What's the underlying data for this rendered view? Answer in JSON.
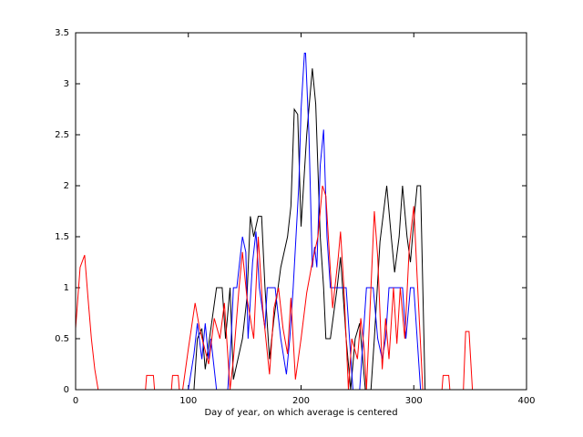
{
  "chart_data": {
    "type": "line",
    "xlabel": "Day of year, on which average is centered",
    "xlim": [
      0,
      400
    ],
    "xticks": [
      0,
      100,
      200,
      300,
      400
    ],
    "ylim": [
      0,
      3.5
    ],
    "yticks": [
      0,
      0.5,
      1,
      1.5,
      2,
      2.5,
      3,
      3.5
    ],
    "grid": false,
    "series": [
      {
        "color": "#000000",
        "x": [
          0,
          105,
          108,
          112,
          115,
          120,
          125,
          130,
          133,
          137,
          140,
          143,
          148,
          152,
          155,
          158,
          162,
          165,
          168,
          172,
          176,
          182,
          188,
          191,
          194,
          197,
          200,
          205,
          210,
          213,
          217,
          220,
          222,
          226,
          232,
          235,
          240,
          244,
          248,
          252,
          257,
          262,
          265,
          270,
          276,
          280,
          283,
          287,
          290,
          294,
          297,
          300,
          303,
          306,
          308,
          310,
          400
        ],
        "values": [
          0,
          0,
          0.5,
          0.6,
          0.2,
          0.6,
          1.0,
          1.0,
          0.5,
          1.0,
          0.1,
          0.25,
          0.5,
          0.9,
          1.7,
          1.5,
          1.7,
          1.7,
          1.0,
          0.3,
          0.7,
          1.2,
          1.5,
          1.8,
          2.75,
          2.7,
          1.6,
          2.5,
          3.15,
          2.8,
          1.5,
          1.0,
          0.5,
          0.5,
          1.0,
          1.3,
          0.5,
          0,
          0.5,
          0.65,
          0,
          0,
          0.5,
          1.45,
          2.0,
          1.5,
          1.15,
          1.5,
          2.0,
          1.5,
          1.25,
          1.65,
          2.0,
          2.0,
          1.0,
          0,
          0
        ]
      },
      {
        "color": "#0000ff",
        "x": [
          0,
          100,
          105,
          108,
          112,
          115,
          118,
          120,
          125,
          135,
          138,
          140,
          143,
          146,
          148,
          151,
          153,
          157,
          160,
          163,
          168,
          170,
          177,
          182,
          187,
          190,
          193,
          198,
          200,
          203,
          204,
          207,
          210,
          212,
          214,
          217,
          220,
          223,
          226,
          240,
          243,
          246,
          252,
          258,
          264,
          268,
          272,
          275,
          278,
          290,
          293,
          297,
          300,
          306,
          400
        ],
        "values": [
          0,
          0,
          0.35,
          0.65,
          0.3,
          0.65,
          0.3,
          0.5,
          0,
          0,
          0.5,
          1.0,
          1.0,
          1.3,
          1.5,
          1.35,
          0.5,
          1.25,
          1.55,
          1.0,
          0.6,
          1.0,
          1.0,
          0.5,
          0.15,
          0.5,
          1.0,
          2.0,
          2.75,
          3.3,
          3.3,
          2.5,
          1.2,
          1.4,
          1.2,
          2.2,
          2.55,
          1.5,
          1.0,
          1.0,
          0.5,
          0,
          0,
          1.0,
          1.0,
          0.5,
          0.3,
          0.5,
          1.0,
          1.0,
          0.5,
          1.0,
          1.0,
          0,
          0
        ]
      },
      {
        "color": "#ff0000",
        "x": [
          0,
          4,
          8,
          11,
          14,
          17,
          20,
          62,
          63,
          69,
          70,
          85,
          86,
          91,
          92,
          95,
          100,
          106,
          110,
          118,
          123,
          128,
          132,
          137,
          140,
          145,
          148,
          152,
          158,
          162,
          166,
          172,
          176,
          180,
          184,
          188,
          191,
          195,
          200,
          205,
          210,
          215,
          219,
          222,
          228,
          233,
          235,
          238,
          242,
          245,
          250,
          253,
          256,
          258,
          262,
          265,
          268,
          272,
          275,
          278,
          282,
          285,
          288,
          292,
          296,
          300,
          303,
          308,
          325,
          326,
          331,
          332,
          344,
          346,
          349,
          352,
          400
        ],
        "values": [
          0.6,
          1.2,
          1.32,
          0.9,
          0.5,
          0.2,
          0,
          0,
          0.14,
          0.14,
          0,
          0,
          0.14,
          0.14,
          0,
          0,
          0.4,
          0.85,
          0.6,
          0.25,
          0.7,
          0.5,
          0.85,
          0,
          0.3,
          1.0,
          1.35,
          0.9,
          0.5,
          1.5,
          0.8,
          0.15,
          0.8,
          1.0,
          0.6,
          0.35,
          0.9,
          0.1,
          0.5,
          0.95,
          1.25,
          1.5,
          2.0,
          1.9,
          0.8,
          1.3,
          1.55,
          1.0,
          0,
          0.5,
          0.3,
          0.7,
          0.4,
          0,
          1.0,
          1.75,
          1.3,
          0.2,
          0.7,
          0.3,
          1.0,
          0.45,
          1.0,
          0.5,
          1.4,
          1.8,
          1.1,
          0,
          0,
          0.14,
          0.14,
          0,
          0,
          0.57,
          0.57,
          0,
          0
        ]
      }
    ]
  }
}
